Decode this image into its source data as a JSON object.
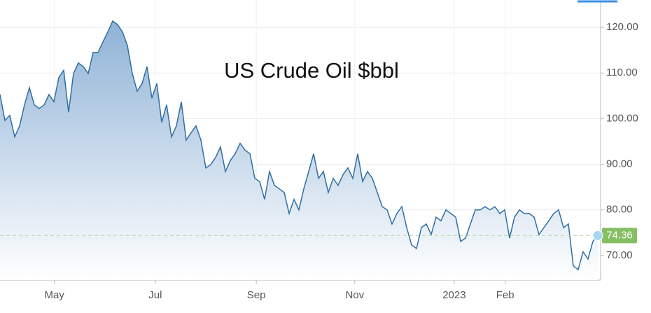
{
  "chart_data": {
    "type": "area",
    "title": "US Crude Oil $bbl",
    "values": [
      105.3,
      99.6,
      100.7,
      96,
      98.4,
      103,
      106.8,
      103,
      102.2,
      103,
      105.3,
      103.7,
      109,
      110.6,
      101.4,
      109.9,
      112.2,
      111.4,
      109.9,
      114.5,
      114.5,
      116.8,
      119,
      121.4,
      120.6,
      119,
      116,
      109.9,
      106,
      107.7,
      111.4,
      104.5,
      107.7,
      99.2,
      103,
      96,
      98.4,
      103.7,
      95.3,
      96.9,
      98.4,
      95.3,
      89.2,
      89.9,
      91.5,
      93.8,
      88.4,
      90.8,
      92.3,
      94.6,
      93.1,
      92.3,
      86.9,
      86.2,
      82.3,
      88.4,
      85.4,
      84.6,
      83.8,
      79.2,
      82.3,
      80,
      84.6,
      88.4,
      92.3,
      86.9,
      88.4,
      83.8,
      86.9,
      85.4,
      87.7,
      89.2,
      86.9,
      92.3,
      86.2,
      88.4,
      86.9,
      83.8,
      80.7,
      80,
      76.9,
      79.2,
      80.7,
      76.1,
      72.3,
      71.5,
      76.1,
      76.9,
      74.6,
      78.4,
      77.6,
      80,
      79.2,
      78.4,
      73.1,
      73.8,
      76.9,
      80,
      80,
      80.7,
      80,
      80.7,
      79.2,
      80,
      73.8,
      78.4,
      80,
      79.2,
      79.2,
      78.4,
      74.6,
      76.1,
      77.6,
      79.2,
      80,
      76.1,
      76.9,
      67.7,
      66.9,
      70.8,
      69.2,
      73.1,
      74.36
    ],
    "color": "#2f6fa3",
    "last_value": 74.36,
    "xlim": [
      0,
      122
    ],
    "xticks": [
      {
        "value": 11.1,
        "label": "May"
      },
      {
        "value": 31.7,
        "label": "Jul"
      },
      {
        "value": 52.3,
        "label": "Sep"
      },
      {
        "value": 72.4,
        "label": "Nov"
      },
      {
        "value": 92.7,
        "label": "2023"
      },
      {
        "value": 103.1,
        "label": "Feb"
      }
    ],
    "ylim": [
      64.6,
      126
    ],
    "yticks": [
      {
        "value": 70,
        "label": "70.00"
      },
      {
        "value": 80,
        "label": "80.00"
      },
      {
        "value": 90,
        "label": "90.00"
      },
      {
        "value": 100,
        "label": "100.00"
      },
      {
        "value": 110,
        "label": "110.00"
      },
      {
        "value": 120,
        "label": "120.00"
      }
    ],
    "grid": true
  }
}
